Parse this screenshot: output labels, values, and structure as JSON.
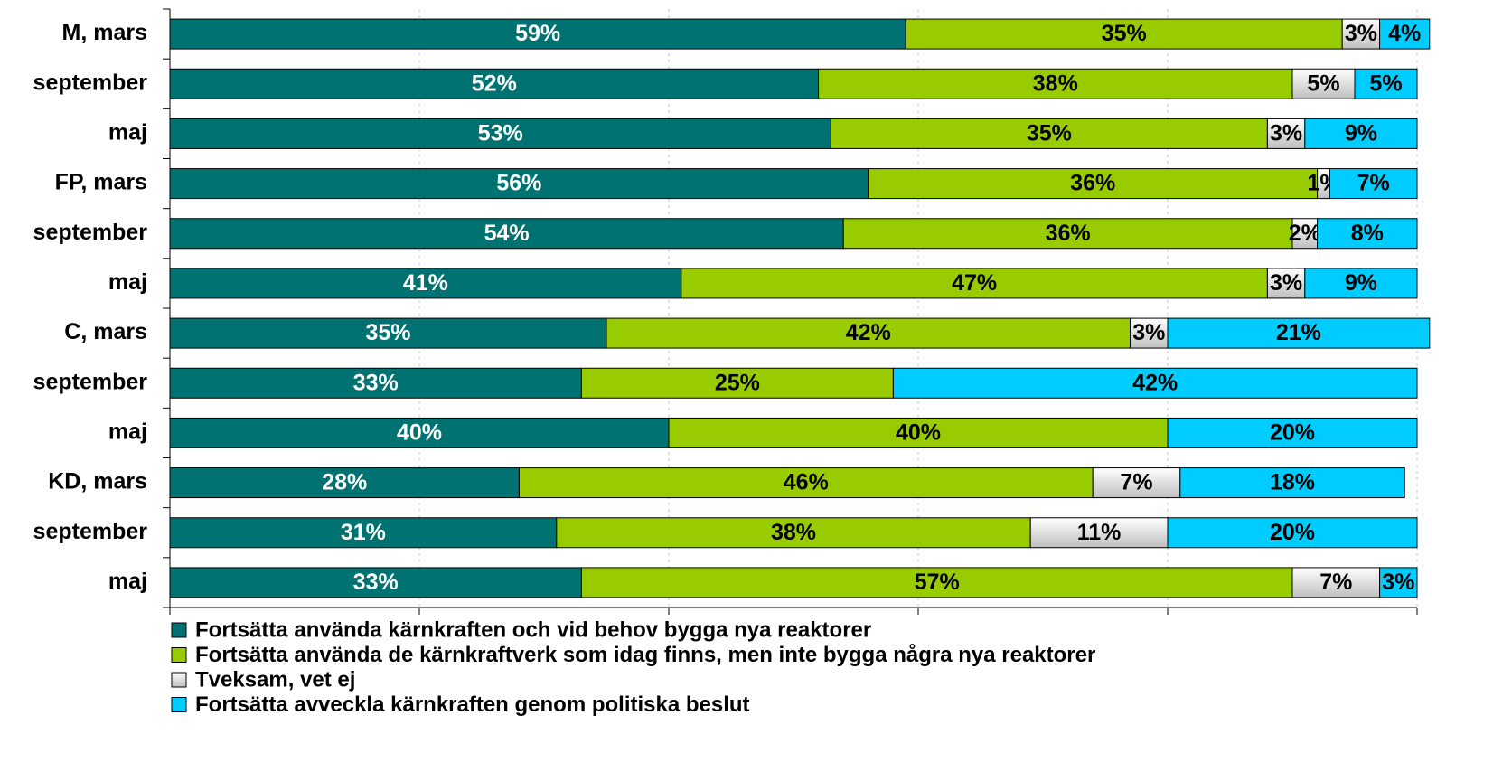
{
  "chart_data": {
    "type": "stacked-barh",
    "categories": [
      "M, mars",
      "september",
      "maj",
      "FP, mars",
      "september",
      "maj",
      "C, mars",
      "september",
      "maj",
      "KD, mars",
      "september",
      "maj"
    ],
    "series": [
      {
        "name": "Fortsätta använda kärnkraften och vid behov bygga nya reaktorer",
        "color": "#007272",
        "values": [
          59,
          52,
          53,
          56,
          54,
          41,
          35,
          33,
          40,
          28,
          31,
          33
        ],
        "value_labels": [
          "59%",
          "52%",
          "53%",
          "56%",
          "54%",
          "41%",
          "35%",
          "33%",
          "40%",
          "28%",
          "31%",
          "33%"
        ]
      },
      {
        "name": "Fortsätta använda de kärnkraftverk som idag finns, men inte bygga några nya reaktorer",
        "color": "#99cc00",
        "values": [
          35,
          38,
          35,
          36,
          36,
          47,
          42,
          25,
          40,
          46,
          38,
          57
        ],
        "value_labels": [
          "35%",
          "38%",
          "35%",
          "36%",
          "36%",
          "47%",
          "42%",
          "25%",
          "40%",
          "46%",
          "38%",
          "57%"
        ]
      },
      {
        "name": "Tveksam, vet ej",
        "color": "#e4e4e4",
        "values": [
          3,
          5,
          3,
          1,
          2,
          3,
          3,
          null,
          null,
          7,
          11,
          7
        ],
        "value_labels": [
          "3%",
          "5%",
          "3%",
          "1%",
          "2%",
          "3%",
          "3%",
          null,
          null,
          "7%",
          "11%",
          "7%"
        ]
      },
      {
        "name": "Fortsätta avveckla kärnkraften genom politiska beslut",
        "color": "#00ccff",
        "values": [
          4,
          5,
          9,
          7,
          8,
          9,
          21,
          42,
          20,
          18,
          20,
          3
        ],
        "value_labels": [
          "4%",
          "5%",
          "9%",
          "7%",
          "8%",
          "9%",
          "21%",
          "42%",
          "20%",
          "18%",
          "20%",
          "3%"
        ]
      }
    ],
    "xlim": [
      0,
      100
    ],
    "xticks": [
      0,
      20,
      40,
      60,
      80,
      100
    ],
    "grid": true,
    "legend": "bottom"
  }
}
